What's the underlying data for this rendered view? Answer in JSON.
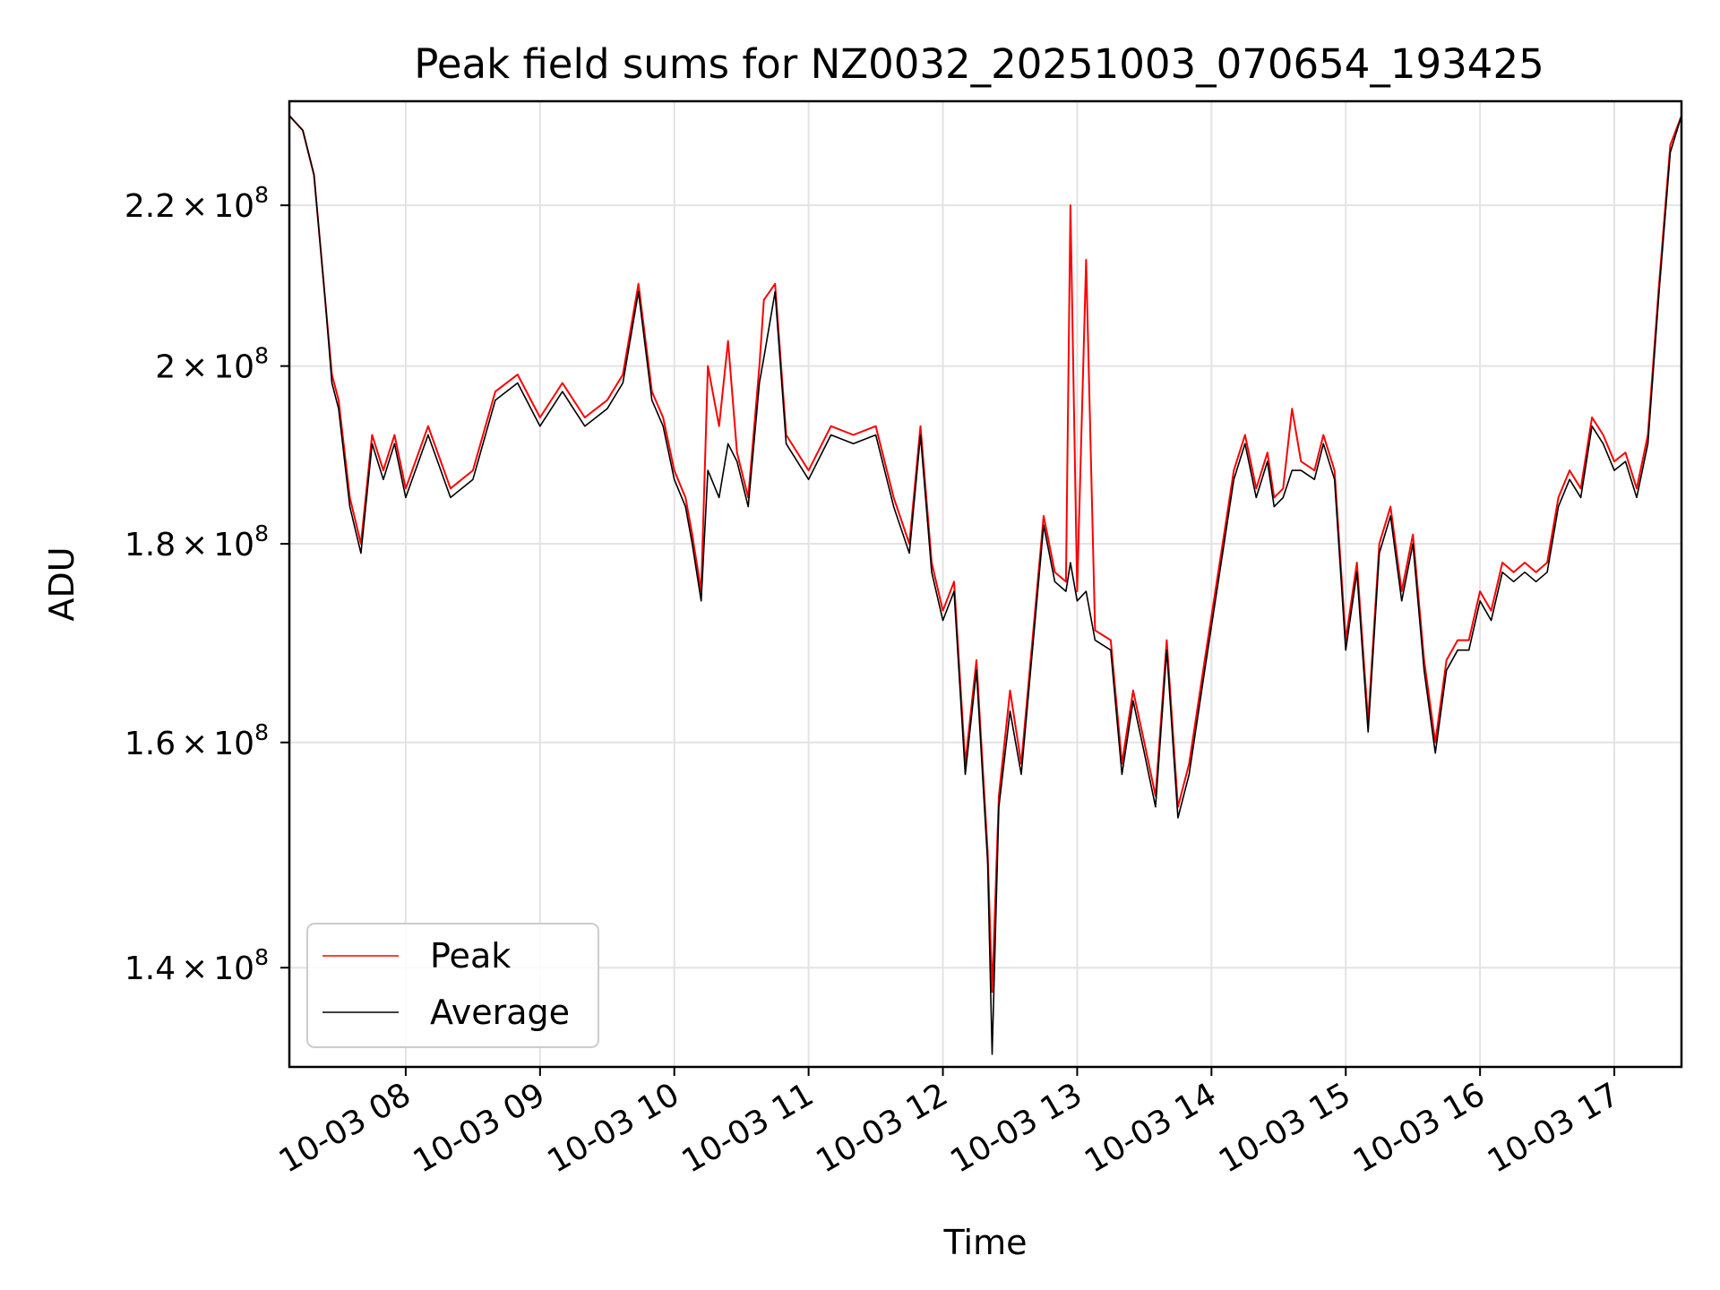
{
  "chart_data": {
    "type": "line",
    "title": "Peak field sums for NZ0032_20251003_070654_193425",
    "xlabel": "Time",
    "ylabel": "ADU",
    "x_axis": "datetime",
    "x_range": [
      "2025-10-03 07:08",
      "2025-10-03 17:30"
    ],
    "y_scale": "log",
    "ylim": [
      132000000,
      234000000
    ],
    "grid": true,
    "legend_position": "lower-left",
    "x_ticks": [
      {
        "value": "2025-10-03 08:00",
        "label": "10-03 08"
      },
      {
        "value": "2025-10-03 09:00",
        "label": "10-03 09"
      },
      {
        "value": "2025-10-03 10:00",
        "label": "10-03 10"
      },
      {
        "value": "2025-10-03 11:00",
        "label": "10-03 11"
      },
      {
        "value": "2025-10-03 12:00",
        "label": "10-03 12"
      },
      {
        "value": "2025-10-03 13:00",
        "label": "10-03 13"
      },
      {
        "value": "2025-10-03 14:00",
        "label": "10-03 14"
      },
      {
        "value": "2025-10-03 15:00",
        "label": "10-03 15"
      },
      {
        "value": "2025-10-03 16:00",
        "label": "10-03 16"
      },
      {
        "value": "2025-10-03 17:00",
        "label": "10-03 17"
      }
    ],
    "y_ticks": [
      {
        "value": 140000000,
        "mantissa": "1.4",
        "base": "10",
        "exponent": "8"
      },
      {
        "value": 160000000,
        "mantissa": "1.6",
        "base": "10",
        "exponent": "8"
      },
      {
        "value": 180000000,
        "mantissa": "1.8",
        "base": "10",
        "exponent": "8"
      },
      {
        "value": 200000000,
        "mantissa": "2",
        "base": "10",
        "exponent": "8"
      },
      {
        "value": 220000000,
        "mantissa": "2.2",
        "base": "10",
        "exponent": "8"
      }
    ],
    "series": [
      {
        "name": "Peak",
        "color": "#ff0000",
        "x": [
          "2025-10-03 07:08",
          "2025-10-03 07:14",
          "2025-10-03 07:19",
          "2025-10-03 07:24",
          "2025-10-03 07:27",
          "2025-10-03 07:30",
          "2025-10-03 07:35",
          "2025-10-03 07:40",
          "2025-10-03 07:45",
          "2025-10-03 07:50",
          "2025-10-03 07:55",
          "2025-10-03 08:00",
          "2025-10-03 08:10",
          "2025-10-03 08:20",
          "2025-10-03 08:30",
          "2025-10-03 08:40",
          "2025-10-03 08:50",
          "2025-10-03 09:00",
          "2025-10-03 09:10",
          "2025-10-03 09:20",
          "2025-10-03 09:30",
          "2025-10-03 09:37",
          "2025-10-03 09:44",
          "2025-10-03 09:50",
          "2025-10-03 09:55",
          "2025-10-03 10:00",
          "2025-10-03 10:05",
          "2025-10-03 10:08",
          "2025-10-03 10:12",
          "2025-10-03 10:15",
          "2025-10-03 10:20",
          "2025-10-03 10:24",
          "2025-10-03 10:28",
          "2025-10-03 10:33",
          "2025-10-03 10:38",
          "2025-10-03 10:40",
          "2025-10-03 10:45",
          "2025-10-03 10:50",
          "2025-10-03 11:00",
          "2025-10-03 11:10",
          "2025-10-03 11:20",
          "2025-10-03 11:30",
          "2025-10-03 11:38",
          "2025-10-03 11:45",
          "2025-10-03 11:50",
          "2025-10-03 11:55",
          "2025-10-03 12:00",
          "2025-10-03 12:05",
          "2025-10-03 12:10",
          "2025-10-03 12:15",
          "2025-10-03 12:20",
          "2025-10-03 12:22",
          "2025-10-03 12:25",
          "2025-10-03 12:30",
          "2025-10-03 12:35",
          "2025-10-03 12:40",
          "2025-10-03 12:45",
          "2025-10-03 12:50",
          "2025-10-03 12:55",
          "2025-10-03 12:57",
          "2025-10-03 13:00",
          "2025-10-03 13:04",
          "2025-10-03 13:08",
          "2025-10-03 13:15",
          "2025-10-03 13:20",
          "2025-10-03 13:25",
          "2025-10-03 13:30",
          "2025-10-03 13:35",
          "2025-10-03 13:40",
          "2025-10-03 13:45",
          "2025-10-03 13:50",
          "2025-10-03 13:57",
          "2025-10-03 14:05",
          "2025-10-03 14:10",
          "2025-10-03 14:15",
          "2025-10-03 14:20",
          "2025-10-03 14:25",
          "2025-10-03 14:28",
          "2025-10-03 14:32",
          "2025-10-03 14:36",
          "2025-10-03 14:40",
          "2025-10-03 14:46",
          "2025-10-03 14:50",
          "2025-10-03 14:55",
          "2025-10-03 15:00",
          "2025-10-03 15:05",
          "2025-10-03 15:10",
          "2025-10-03 15:15",
          "2025-10-03 15:20",
          "2025-10-03 15:25",
          "2025-10-03 15:30",
          "2025-10-03 15:35",
          "2025-10-03 15:40",
          "2025-10-03 15:45",
          "2025-10-03 15:50",
          "2025-10-03 15:55",
          "2025-10-03 16:00",
          "2025-10-03 16:05",
          "2025-10-03 16:10",
          "2025-10-03 16:15",
          "2025-10-03 16:20",
          "2025-10-03 16:25",
          "2025-10-03 16:30",
          "2025-10-03 16:35",
          "2025-10-03 16:40",
          "2025-10-03 16:45",
          "2025-10-03 16:50",
          "2025-10-03 16:55",
          "2025-10-03 17:00",
          "2025-10-03 17:05",
          "2025-10-03 17:10",
          "2025-10-03 17:15",
          "2025-10-03 17:20",
          "2025-10-03 17:25",
          "2025-10-03 17:30"
        ],
        "y": [
          232000000,
          230000000,
          224000000,
          208000000,
          199000000,
          196000000,
          185000000,
          180000000,
          192000000,
          188000000,
          192000000,
          186000000,
          193000000,
          186000000,
          188000000,
          197000000,
          199000000,
          194000000,
          198000000,
          194000000,
          196000000,
          199000000,
          210000000,
          197000000,
          194000000,
          188000000,
          185000000,
          181000000,
          175000000,
          200000000,
          193000000,
          203000000,
          190000000,
          185000000,
          200000000,
          208000000,
          210000000,
          192000000,
          188000000,
          193000000,
          192000000,
          193000000,
          185000000,
          180000000,
          193000000,
          178000000,
          173000000,
          176000000,
          158000000,
          168000000,
          150000000,
          138000000,
          155000000,
          165000000,
          158000000,
          170000000,
          183000000,
          177000000,
          176000000,
          220000000,
          175000000,
          213000000,
          171000000,
          170000000,
          158000000,
          165000000,
          160000000,
          155000000,
          170000000,
          154000000,
          158000000,
          168000000,
          180000000,
          188000000,
          192000000,
          186000000,
          190000000,
          185000000,
          186000000,
          195000000,
          189000000,
          188000000,
          192000000,
          188000000,
          170000000,
          178000000,
          162000000,
          180000000,
          184000000,
          175000000,
          181000000,
          168000000,
          160000000,
          168000000,
          170000000,
          170000000,
          175000000,
          173000000,
          178000000,
          177000000,
          178000000,
          177000000,
          178000000,
          185000000,
          188000000,
          186000000,
          194000000,
          192000000,
          189000000,
          190000000,
          186000000,
          192000000,
          210000000,
          228000000,
          232000000
        ]
      },
      {
        "name": "Average",
        "color": "#000000",
        "x": [
          "2025-10-03 07:08",
          "2025-10-03 07:14",
          "2025-10-03 07:19",
          "2025-10-03 07:24",
          "2025-10-03 07:27",
          "2025-10-03 07:30",
          "2025-10-03 07:35",
          "2025-10-03 07:40",
          "2025-10-03 07:45",
          "2025-10-03 07:50",
          "2025-10-03 07:55",
          "2025-10-03 08:00",
          "2025-10-03 08:10",
          "2025-10-03 08:20",
          "2025-10-03 08:30",
          "2025-10-03 08:40",
          "2025-10-03 08:50",
          "2025-10-03 09:00",
          "2025-10-03 09:10",
          "2025-10-03 09:20",
          "2025-10-03 09:30",
          "2025-10-03 09:37",
          "2025-10-03 09:44",
          "2025-10-03 09:50",
          "2025-10-03 09:55",
          "2025-10-03 10:00",
          "2025-10-03 10:05",
          "2025-10-03 10:08",
          "2025-10-03 10:12",
          "2025-10-03 10:15",
          "2025-10-03 10:20",
          "2025-10-03 10:24",
          "2025-10-03 10:28",
          "2025-10-03 10:33",
          "2025-10-03 10:38",
          "2025-10-03 10:40",
          "2025-10-03 10:45",
          "2025-10-03 10:50",
          "2025-10-03 11:00",
          "2025-10-03 11:10",
          "2025-10-03 11:20",
          "2025-10-03 11:30",
          "2025-10-03 11:38",
          "2025-10-03 11:45",
          "2025-10-03 11:50",
          "2025-10-03 11:55",
          "2025-10-03 12:00",
          "2025-10-03 12:05",
          "2025-10-03 12:10",
          "2025-10-03 12:15",
          "2025-10-03 12:20",
          "2025-10-03 12:22",
          "2025-10-03 12:25",
          "2025-10-03 12:30",
          "2025-10-03 12:35",
          "2025-10-03 12:40",
          "2025-10-03 12:45",
          "2025-10-03 12:50",
          "2025-10-03 12:55",
          "2025-10-03 12:57",
          "2025-10-03 13:00",
          "2025-10-03 13:04",
          "2025-10-03 13:08",
          "2025-10-03 13:15",
          "2025-10-03 13:20",
          "2025-10-03 13:25",
          "2025-10-03 13:30",
          "2025-10-03 13:35",
          "2025-10-03 13:40",
          "2025-10-03 13:45",
          "2025-10-03 13:50",
          "2025-10-03 13:57",
          "2025-10-03 14:05",
          "2025-10-03 14:10",
          "2025-10-03 14:15",
          "2025-10-03 14:20",
          "2025-10-03 14:25",
          "2025-10-03 14:28",
          "2025-10-03 14:32",
          "2025-10-03 14:36",
          "2025-10-03 14:40",
          "2025-10-03 14:46",
          "2025-10-03 14:50",
          "2025-10-03 14:55",
          "2025-10-03 15:00",
          "2025-10-03 15:05",
          "2025-10-03 15:10",
          "2025-10-03 15:15",
          "2025-10-03 15:20",
          "2025-10-03 15:25",
          "2025-10-03 15:30",
          "2025-10-03 15:35",
          "2025-10-03 15:40",
          "2025-10-03 15:45",
          "2025-10-03 15:50",
          "2025-10-03 15:55",
          "2025-10-03 16:00",
          "2025-10-03 16:05",
          "2025-10-03 16:10",
          "2025-10-03 16:15",
          "2025-10-03 16:20",
          "2025-10-03 16:25",
          "2025-10-03 16:30",
          "2025-10-03 16:35",
          "2025-10-03 16:40",
          "2025-10-03 16:45",
          "2025-10-03 16:50",
          "2025-10-03 16:55",
          "2025-10-03 17:00",
          "2025-10-03 17:05",
          "2025-10-03 17:10",
          "2025-10-03 17:15",
          "2025-10-03 17:20",
          "2025-10-03 17:25",
          "2025-10-03 17:30"
        ],
        "y": [
          232000000,
          230000000,
          224000000,
          208000000,
          198000000,
          195000000,
          184000000,
          179000000,
          191000000,
          187000000,
          191000000,
          185000000,
          192000000,
          185000000,
          187000000,
          196000000,
          198000000,
          193000000,
          197000000,
          193000000,
          195000000,
          198000000,
          209000000,
          196000000,
          193000000,
          187000000,
          184000000,
          180000000,
          174000000,
          188000000,
          185000000,
          191000000,
          189000000,
          184000000,
          198000000,
          201000000,
          209000000,
          191000000,
          187000000,
          192000000,
          191000000,
          192000000,
          184000000,
          179000000,
          192000000,
          177000000,
          172000000,
          175000000,
          157000000,
          167000000,
          149000000,
          133000000,
          154000000,
          163000000,
          157000000,
          169000000,
          182000000,
          176000000,
          175000000,
          178000000,
          174000000,
          175000000,
          170000000,
          169000000,
          157000000,
          164000000,
          159000000,
          154000000,
          169000000,
          153000000,
          157000000,
          167000000,
          179000000,
          187000000,
          191000000,
          185000000,
          189000000,
          184000000,
          185000000,
          188000000,
          188000000,
          187000000,
          191000000,
          187000000,
          169000000,
          177000000,
          161000000,
          179000000,
          183000000,
          174000000,
          180000000,
          167000000,
          159000000,
          167000000,
          169000000,
          169000000,
          174000000,
          172000000,
          177000000,
          176000000,
          177000000,
          176000000,
          177000000,
          184000000,
          187000000,
          185000000,
          193000000,
          191000000,
          188000000,
          189000000,
          185000000,
          191000000,
          209000000,
          227000000,
          232000000
        ]
      }
    ]
  }
}
